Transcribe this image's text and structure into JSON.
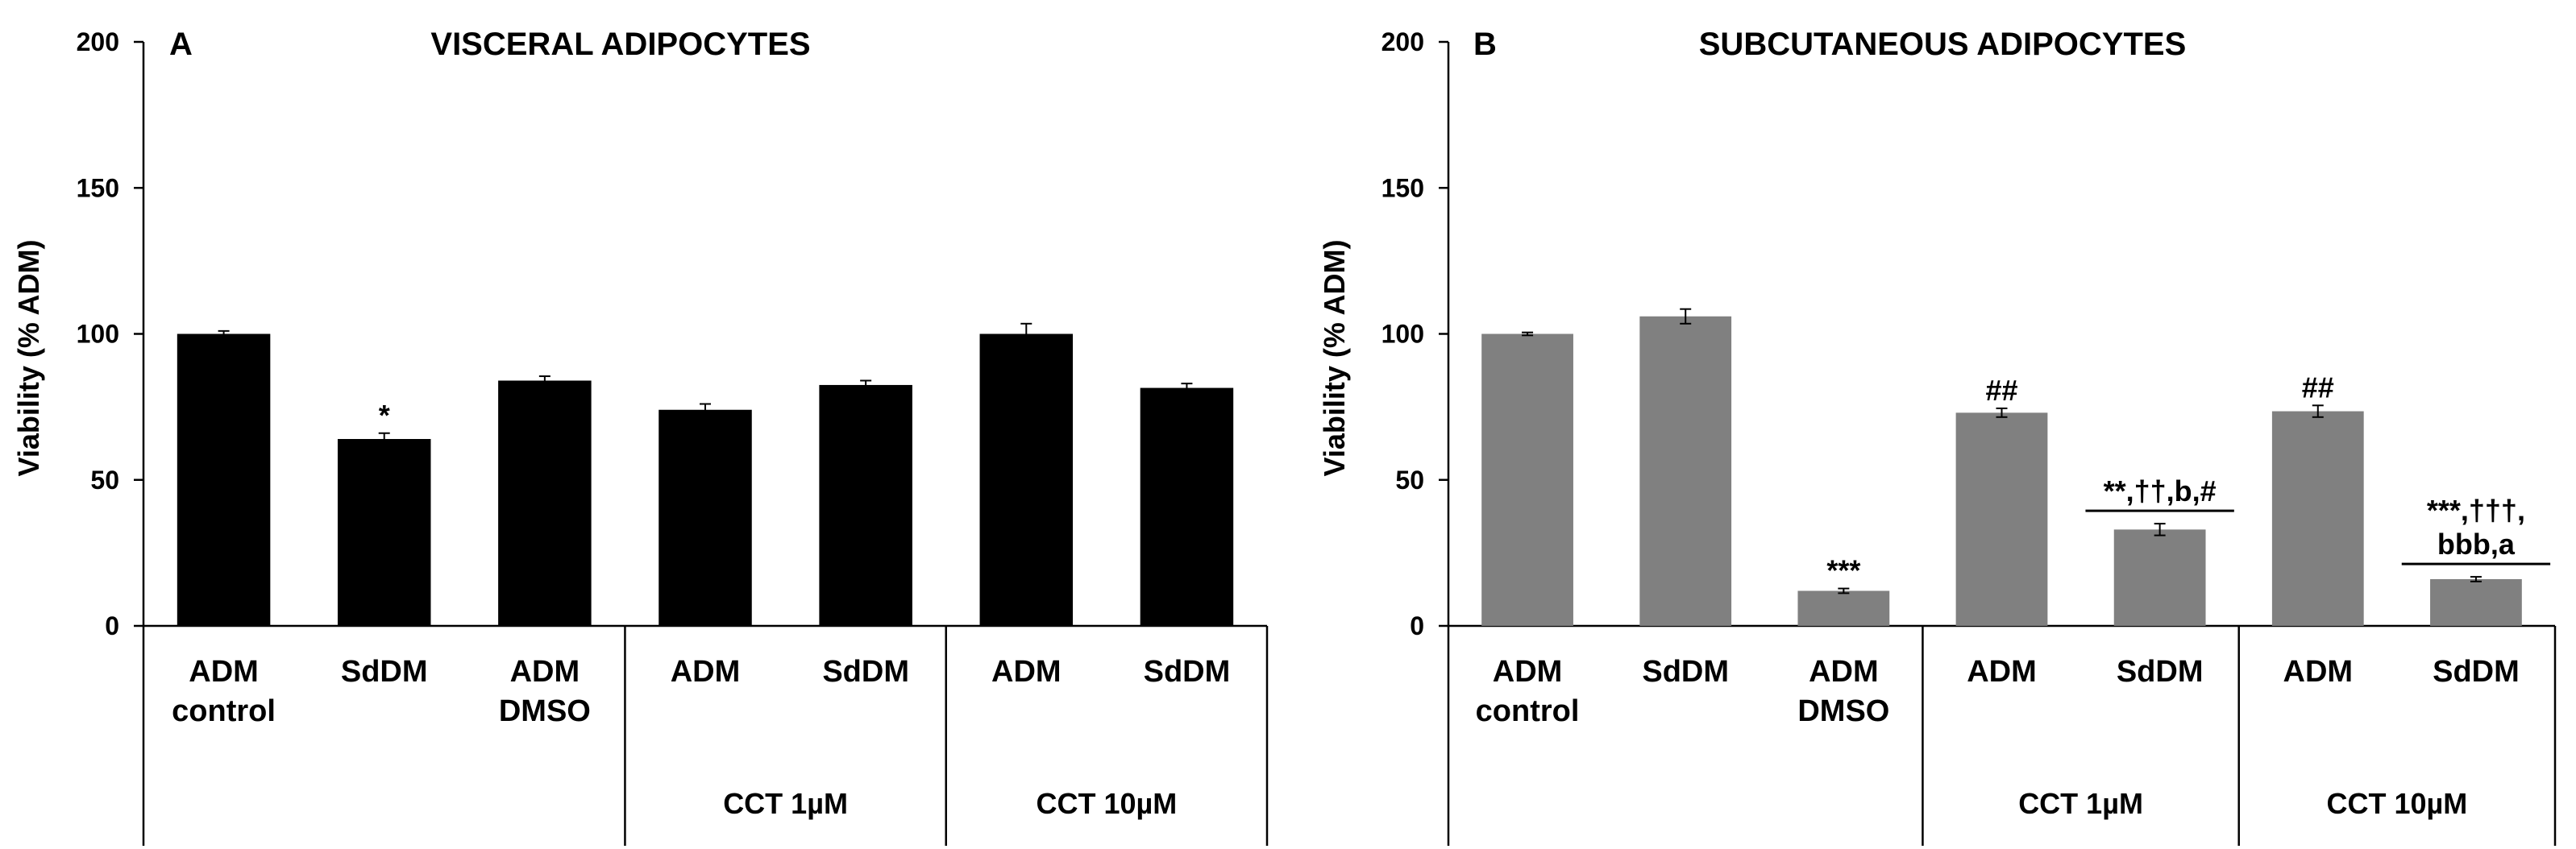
{
  "chart_data": [
    {
      "type": "bar",
      "panel": "A",
      "title": "VISCERAL ADIPOCYTES",
      "ylabel": "Viability (% ADM)",
      "ylim": [
        0,
        200
      ],
      "yticks": [
        0,
        50,
        100,
        150,
        200
      ],
      "grid": false,
      "bar_color": "#000000",
      "categories": [
        [
          "ADM",
          "control"
        ],
        [
          "SdDM"
        ],
        [
          "ADM",
          "DMSO"
        ],
        [
          "ADM"
        ],
        [
          "SdDM"
        ],
        [
          "ADM"
        ],
        [
          "SdDM"
        ]
      ],
      "groups": [
        {
          "label": "",
          "start": 0,
          "end": 2
        },
        {
          "label": "CCT 1µM",
          "start": 3,
          "end": 4
        },
        {
          "label": "CCT 10µM",
          "start": 5,
          "end": 6
        }
      ],
      "values": [
        100,
        64,
        84,
        74,
        82.5,
        100,
        81.5
      ],
      "errors": [
        1,
        2,
        1.5,
        2,
        1.5,
        3.5,
        1.5
      ],
      "annotations": [
        {
          "bar": 1,
          "lines": [
            "*"
          ],
          "underline": false
        }
      ]
    },
    {
      "type": "bar",
      "panel": "B",
      "title": "SUBCUTANEOUS ADIPOCYTES",
      "ylabel": "Viability (% ADM)",
      "ylim": [
        0,
        200
      ],
      "yticks": [
        0,
        50,
        100,
        150,
        200
      ],
      "grid": false,
      "bar_color": "#808080",
      "categories": [
        [
          "ADM",
          "control"
        ],
        [
          "SdDM"
        ],
        [
          "ADM",
          "DMSO"
        ],
        [
          "ADM"
        ],
        [
          "SdDM"
        ],
        [
          "ADM"
        ],
        [
          "SdDM"
        ]
      ],
      "groups": [
        {
          "label": "",
          "start": 0,
          "end": 2
        },
        {
          "label": "CCT 1µM",
          "start": 3,
          "end": 4
        },
        {
          "label": "CCT 10µM",
          "start": 5,
          "end": 6
        }
      ],
      "values": [
        100,
        106,
        12,
        73,
        33,
        73.5,
        16
      ],
      "errors": [
        0.5,
        2.5,
        0.8,
        1.5,
        2,
        2,
        0.8
      ],
      "annotations": [
        {
          "bar": 2,
          "lines": [
            "***"
          ],
          "underline": false
        },
        {
          "bar": 3,
          "lines": [
            "##"
          ],
          "underline": false
        },
        {
          "bar": 4,
          "lines": [
            "**,††,b,#"
          ],
          "underline": true
        },
        {
          "bar": 5,
          "lines": [
            "##"
          ],
          "underline": false
        },
        {
          "bar": 6,
          "lines": [
            "***,†††,",
            "bbb,a"
          ],
          "underline": true
        }
      ]
    }
  ]
}
